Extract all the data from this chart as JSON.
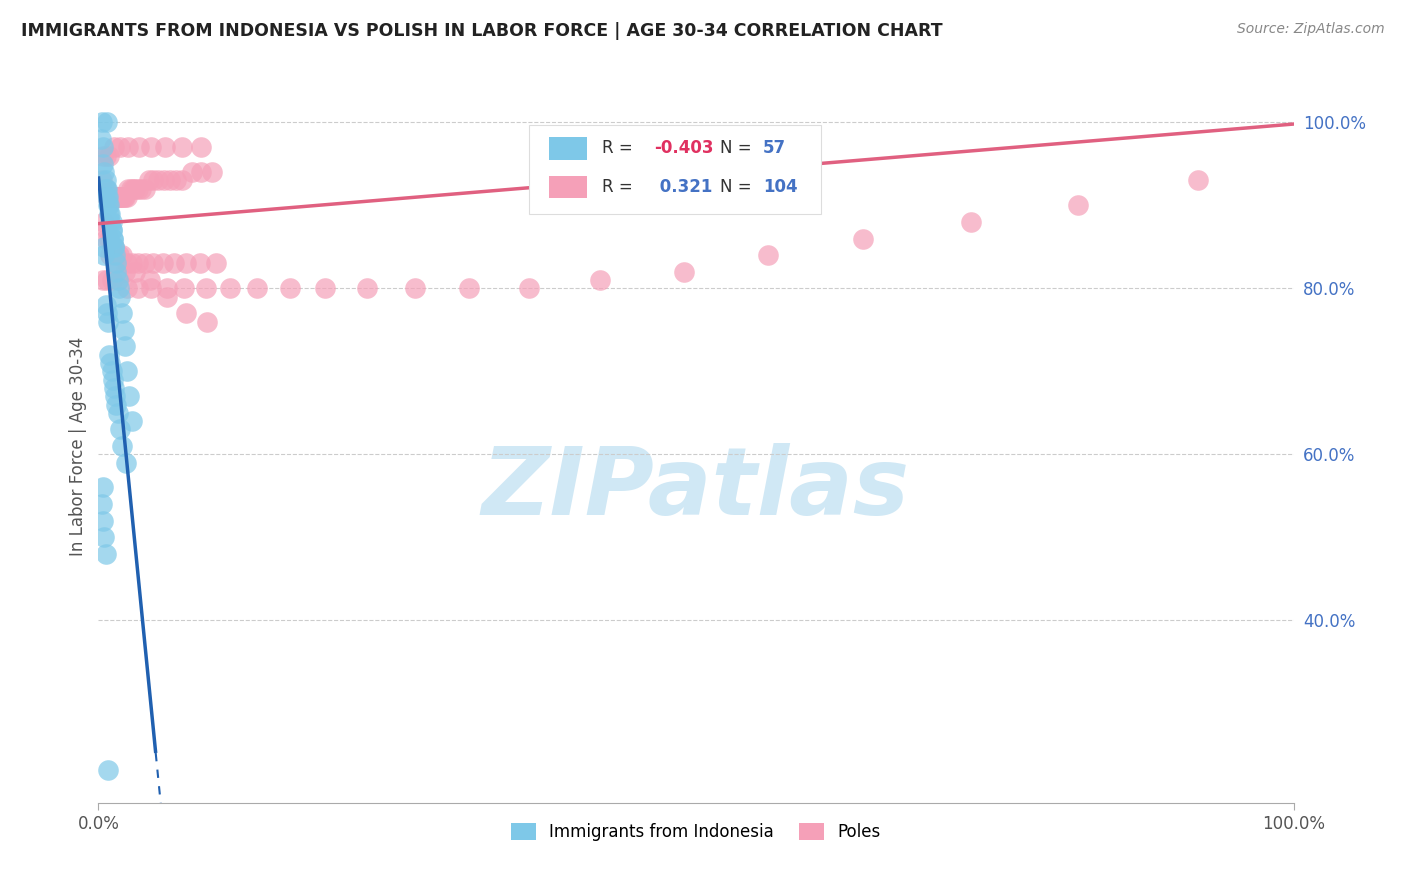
{
  "title": "IMMIGRANTS FROM INDONESIA VS POLISH IN LABOR FORCE | AGE 30-34 CORRELATION CHART",
  "source": "Source: ZipAtlas.com",
  "ylabel": "In Labor Force | Age 30-34",
  "xlim": [
    0.0,
    1.0
  ],
  "ylim": [
    0.18,
    1.04
  ],
  "yticks": [
    0.4,
    0.6,
    0.8,
    1.0
  ],
  "ytick_labels": [
    "40.0%",
    "60.0%",
    "80.0%",
    "100.0%"
  ],
  "xtick_labels": [
    "0.0%",
    "100.0%"
  ],
  "legend_labels": [
    "Immigrants from Indonesia",
    "Poles"
  ],
  "R_indonesia": -0.403,
  "N_indonesia": 57,
  "R_polish": 0.321,
  "N_polish": 104,
  "indonesia_color": "#7ec8e8",
  "polish_color": "#f5a0b8",
  "indonesia_line_color": "#2060b0",
  "polish_line_color": "#e06080",
  "watermark_text": "ZIPatlas",
  "watermark_color": "#d0e8f5",
  "indo_x": [
    0.003,
    0.007,
    0.002,
    0.004,
    0.004,
    0.005,
    0.006,
    0.006,
    0.007,
    0.007,
    0.008,
    0.008,
    0.009,
    0.009,
    0.01,
    0.01,
    0.011,
    0.011,
    0.011,
    0.012,
    0.012,
    0.013,
    0.013,
    0.014,
    0.015,
    0.015,
    0.016,
    0.017,
    0.018,
    0.02,
    0.021,
    0.022,
    0.024,
    0.026,
    0.028,
    0.005,
    0.005,
    0.006,
    0.007,
    0.008,
    0.009,
    0.01,
    0.011,
    0.012,
    0.013,
    0.014,
    0.015,
    0.016,
    0.018,
    0.02,
    0.023,
    0.004,
    0.003,
    0.004,
    0.005,
    0.006,
    0.008
  ],
  "indo_y": [
    1.0,
    1.0,
    0.98,
    0.97,
    0.95,
    0.94,
    0.93,
    0.92,
    0.92,
    0.91,
    0.91,
    0.9,
    0.9,
    0.89,
    0.89,
    0.88,
    0.88,
    0.87,
    0.87,
    0.86,
    0.86,
    0.85,
    0.85,
    0.84,
    0.83,
    0.82,
    0.81,
    0.8,
    0.79,
    0.77,
    0.75,
    0.73,
    0.7,
    0.67,
    0.64,
    0.85,
    0.84,
    0.78,
    0.77,
    0.76,
    0.72,
    0.71,
    0.7,
    0.69,
    0.68,
    0.67,
    0.66,
    0.65,
    0.63,
    0.61,
    0.59,
    0.56,
    0.54,
    0.52,
    0.5,
    0.48,
    0.22
  ],
  "polish_x": [
    0.003,
    0.005,
    0.006,
    0.007,
    0.008,
    0.009,
    0.01,
    0.01,
    0.011,
    0.012,
    0.012,
    0.013,
    0.014,
    0.014,
    0.015,
    0.016,
    0.017,
    0.018,
    0.019,
    0.02,
    0.021,
    0.022,
    0.024,
    0.025,
    0.027,
    0.029,
    0.031,
    0.033,
    0.036,
    0.039,
    0.042,
    0.046,
    0.05,
    0.055,
    0.06,
    0.065,
    0.07,
    0.078,
    0.086,
    0.095,
    0.005,
    0.007,
    0.009,
    0.011,
    0.013,
    0.015,
    0.017,
    0.02,
    0.024,
    0.028,
    0.033,
    0.039,
    0.046,
    0.054,
    0.063,
    0.073,
    0.085,
    0.098,
    0.004,
    0.006,
    0.009,
    0.013,
    0.018,
    0.025,
    0.034,
    0.044,
    0.056,
    0.07,
    0.086,
    0.004,
    0.007,
    0.011,
    0.017,
    0.024,
    0.033,
    0.044,
    0.057,
    0.072,
    0.09,
    0.11,
    0.133,
    0.16,
    0.19,
    0.225,
    0.265,
    0.31,
    0.36,
    0.42,
    0.49,
    0.56,
    0.64,
    0.73,
    0.82,
    0.92,
    0.006,
    0.01,
    0.015,
    0.022,
    0.031,
    0.043,
    0.057,
    0.073,
    0.091
  ],
  "polish_y": [
    0.93,
    0.92,
    0.92,
    0.91,
    0.91,
    0.91,
    0.91,
    0.91,
    0.91,
    0.91,
    0.91,
    0.91,
    0.91,
    0.91,
    0.91,
    0.91,
    0.91,
    0.91,
    0.91,
    0.91,
    0.91,
    0.91,
    0.91,
    0.92,
    0.92,
    0.92,
    0.92,
    0.92,
    0.92,
    0.92,
    0.93,
    0.93,
    0.93,
    0.93,
    0.93,
    0.93,
    0.93,
    0.94,
    0.94,
    0.94,
    0.88,
    0.87,
    0.86,
    0.85,
    0.85,
    0.84,
    0.84,
    0.84,
    0.83,
    0.83,
    0.83,
    0.83,
    0.83,
    0.83,
    0.83,
    0.83,
    0.83,
    0.83,
    0.96,
    0.96,
    0.96,
    0.97,
    0.97,
    0.97,
    0.97,
    0.97,
    0.97,
    0.97,
    0.97,
    0.81,
    0.81,
    0.81,
    0.81,
    0.8,
    0.8,
    0.8,
    0.8,
    0.8,
    0.8,
    0.8,
    0.8,
    0.8,
    0.8,
    0.8,
    0.8,
    0.8,
    0.8,
    0.81,
    0.82,
    0.84,
    0.86,
    0.88,
    0.9,
    0.93,
    0.86,
    0.84,
    0.83,
    0.82,
    0.82,
    0.81,
    0.79,
    0.77,
    0.76
  ],
  "indo_line_x0": 0.0,
  "indo_line_y0": 0.935,
  "indo_line_slope": -14.5,
  "pol_line_x0": 0.0,
  "pol_line_y0": 0.878,
  "pol_line_x1": 1.0,
  "pol_line_y1": 0.998
}
